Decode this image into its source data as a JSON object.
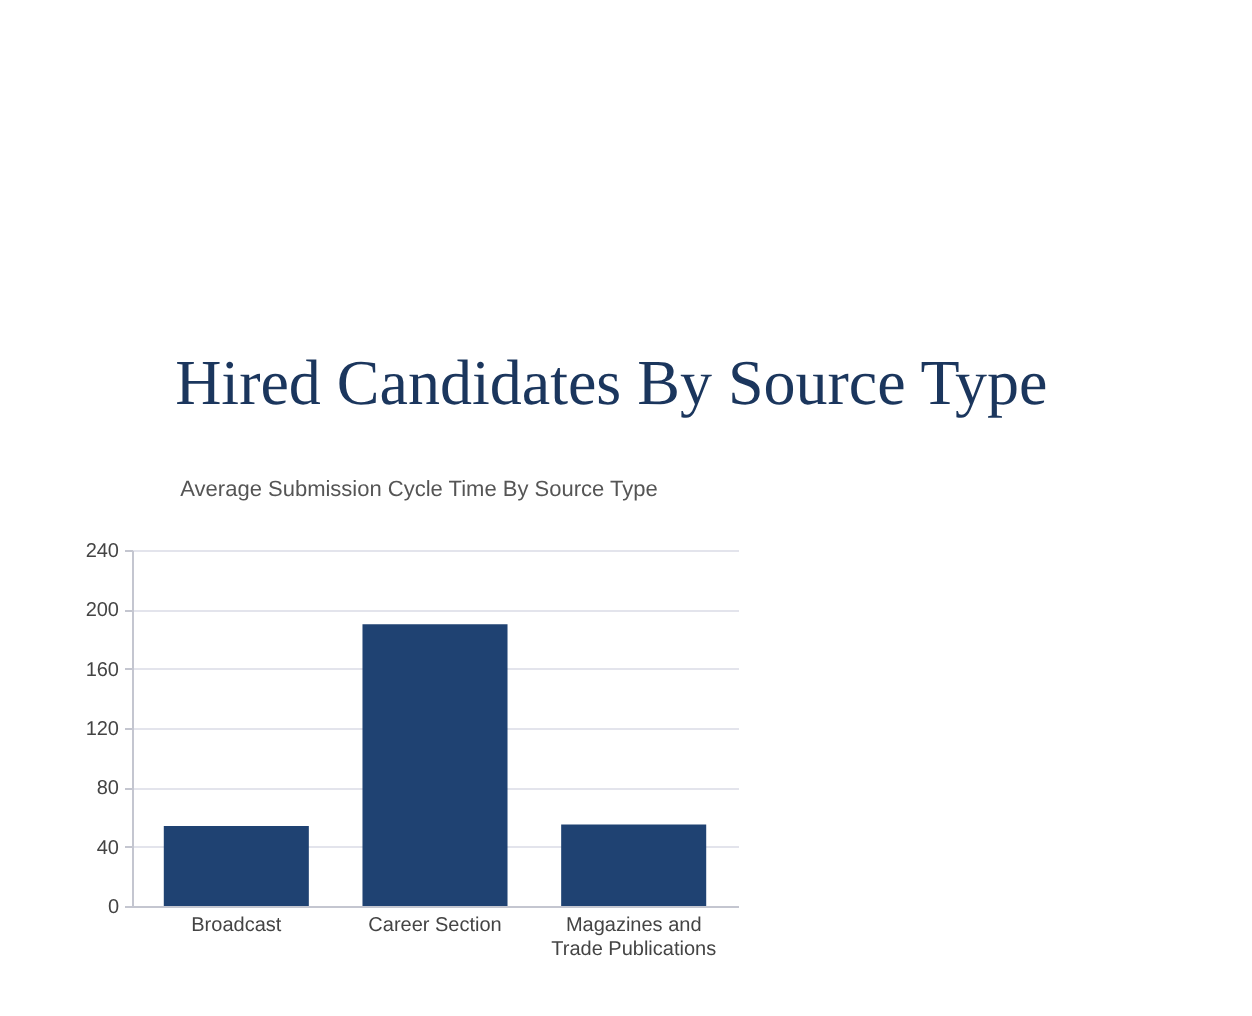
{
  "chart_data": {
    "type": "bar",
    "title": "Hired Candidates By Source Type",
    "subtitle": "Average Submission Cycle Time By Source Type",
    "categories": [
      "Broadcast",
      "Career Section",
      "Magazines and Trade Publications"
    ],
    "values": [
      54,
      190,
      55
    ],
    "color": "#1f4272",
    "ylim": [
      0,
      240
    ],
    "yticks": [
      0,
      40,
      80,
      120,
      160,
      200,
      240
    ],
    "grid": "y"
  }
}
